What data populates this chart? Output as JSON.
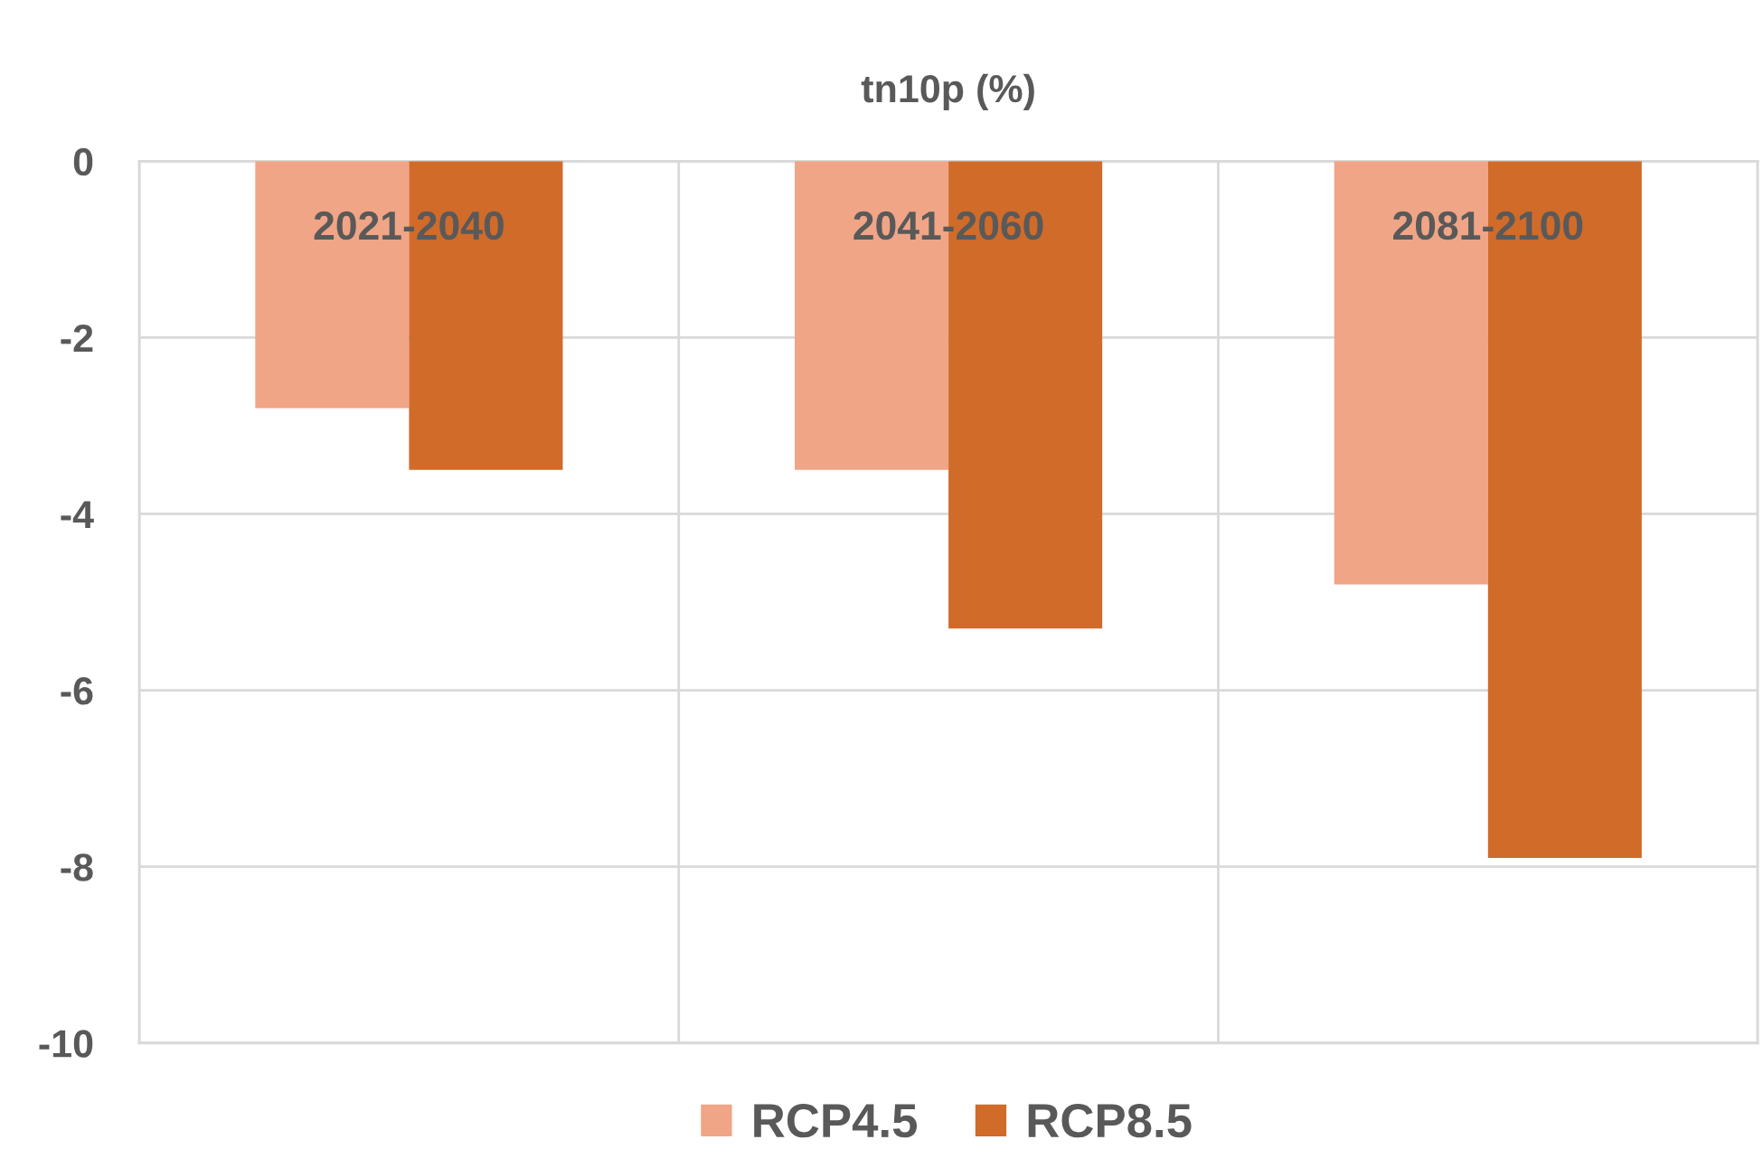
{
  "chart_data": {
    "type": "bar",
    "title": "tn10p (%)",
    "categories": [
      "2021-2040",
      "2041-2060",
      "2081-2100"
    ],
    "series": [
      {
        "name": "RCP4.5",
        "color": "#f0a586",
        "values": [
          -2.8,
          -3.5,
          -4.8
        ]
      },
      {
        "name": "RCP8.5",
        "color": "#d06b2a",
        "values": [
          -3.5,
          -5.3,
          -7.9
        ]
      }
    ],
    "ylim": [
      -10,
      0
    ],
    "yticks": [
      0,
      -2,
      -4,
      -6,
      -8,
      -10
    ],
    "grid": true,
    "legend": "bottom"
  }
}
